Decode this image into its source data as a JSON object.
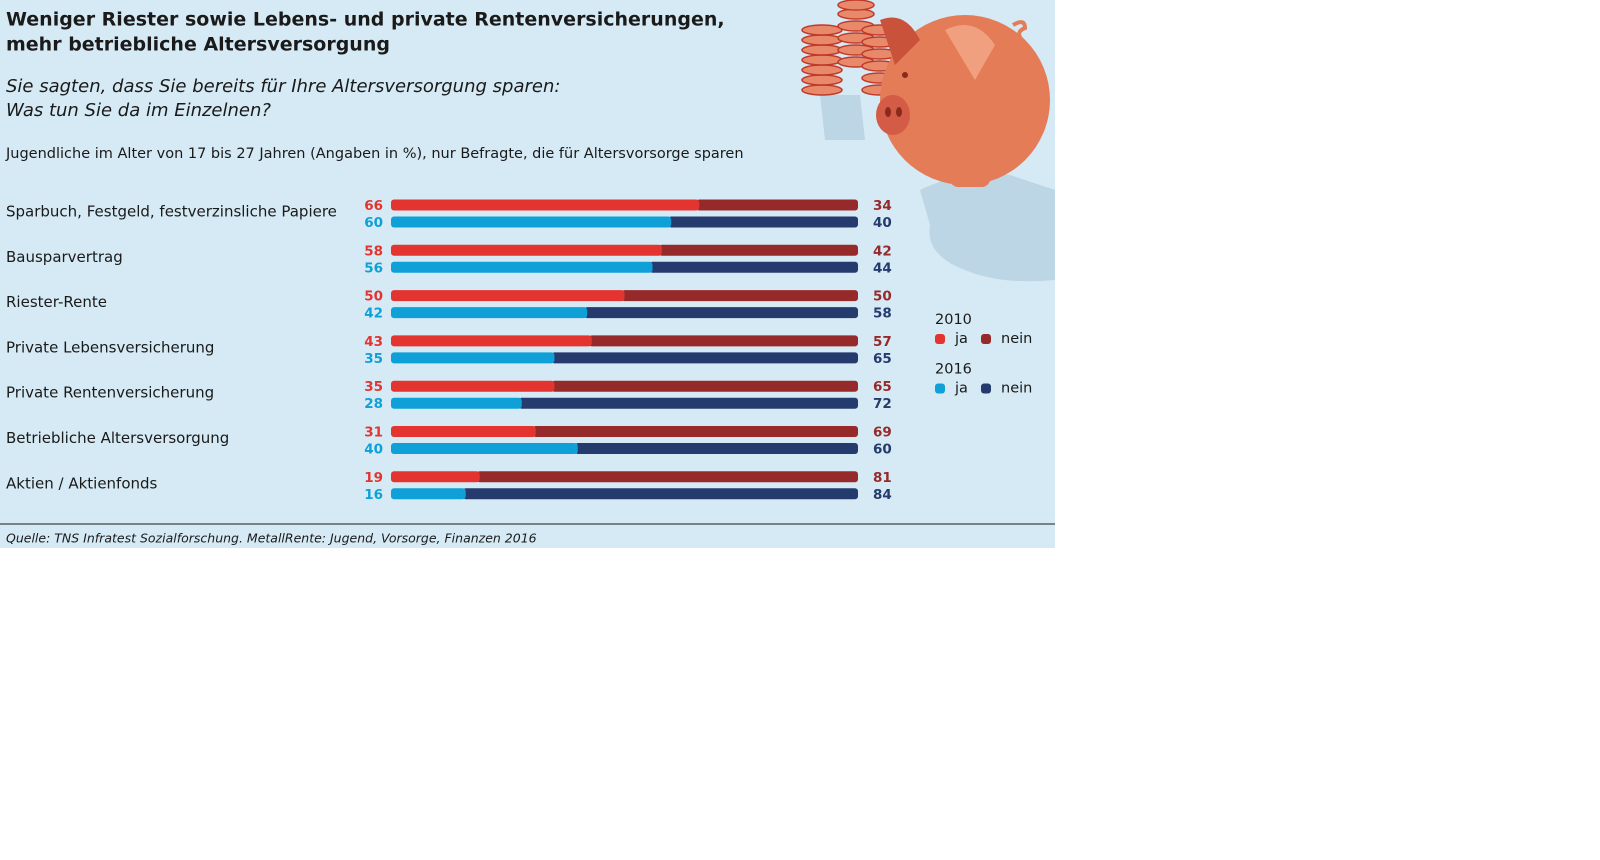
{
  "chart_data": {
    "type": "bar",
    "orientation": "horizontal",
    "stacked": true,
    "title": [
      "Weniger Riester sowie Lebens- und private Rentenversicherungen,",
      "mehr betriebliche Altersversorgung"
    ],
    "subtitle": [
      "Sie sagten, dass Sie bereits für Ihre Altersversorgung sparen:",
      "Was tun Sie da im Einzelnen?"
    ],
    "note": "Jugendliche im Alter von 17 bis 27 Jahren (Angaben in %), nur Befragte, die für Altersvorsorge sparen",
    "source": "Quelle: TNS Infratest Sozialforschung. MetallRente: Jugend, Vorsorge, Finanzen 2016",
    "categories": [
      "Sparbuch, Festgeld, festverzinsliche Papiere",
      "Bausparvertrag",
      "Riester-Rente",
      "Private Lebensversicherung",
      "Private Rentenversicherung",
      "Betriebliche Altersversorgung",
      "Aktien / Aktienfonds"
    ],
    "groups": [
      {
        "name": "2010",
        "series": [
          {
            "name": "ja",
            "color": "#e3342f",
            "values": [
              66,
              58,
              50,
              43,
              35,
              31,
              19
            ]
          },
          {
            "name": "nein",
            "color": "#962a2a",
            "values": [
              34,
              42,
              50,
              57,
              65,
              69,
              81
            ]
          }
        ]
      },
      {
        "name": "2016",
        "series": [
          {
            "name": "ja",
            "color": "#0fa0d8",
            "values": [
              60,
              56,
              42,
              35,
              28,
              40,
              16
            ]
          },
          {
            "name": "nein",
            "color": "#253b6e",
            "values": [
              40,
              44,
              58,
              65,
              72,
              60,
              84
            ]
          }
        ]
      }
    ]
  }
}
